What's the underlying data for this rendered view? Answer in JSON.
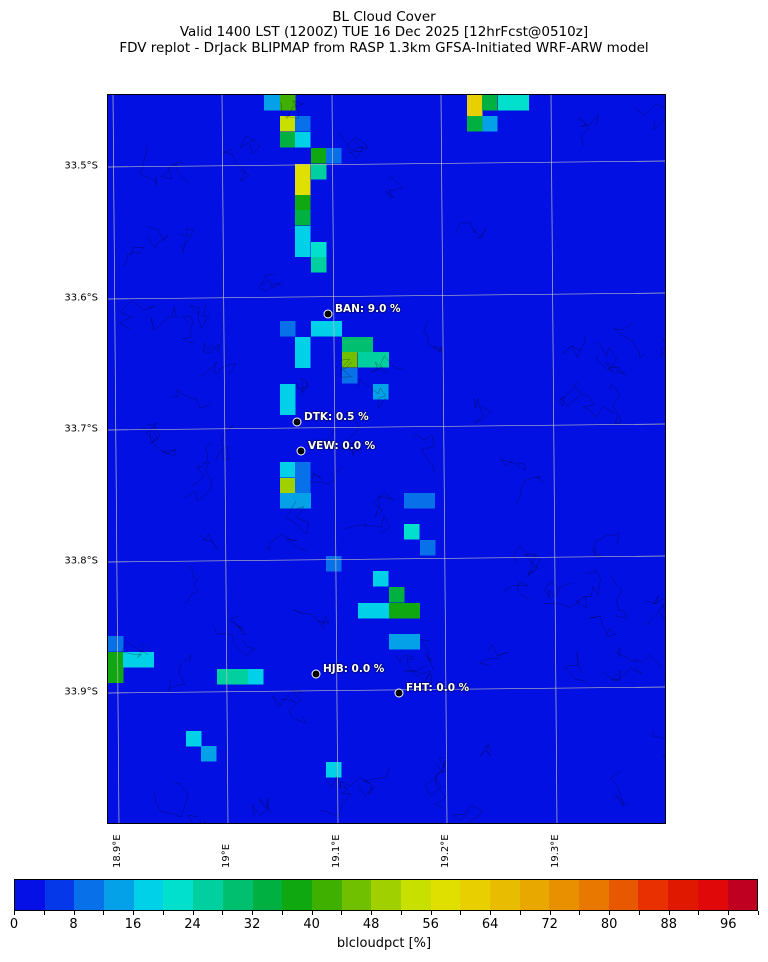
{
  "title": {
    "line1": "BL Cloud Cover",
    "line2": "Valid 1400 LST (1200Z) TUE 16 Dec 2025 [12hrFcst@0510z]",
    "line3": "FDV replot - DrJack BLIPMAP from RASP 1.3km GFSA-Initiated WRF-ARW model"
  },
  "map": {
    "background": "#0310e4",
    "lat_labels": [
      "33.5°S",
      "33.6°S",
      "33.7°S",
      "33.8°S",
      "33.9°S"
    ],
    "lon_labels": [
      "18.9°E",
      "19°E",
      "19.1°E",
      "19.2°E",
      "19.3°E"
    ],
    "stations": [
      {
        "label": "BAN: 9.0 %"
      },
      {
        "label": "DTK: 0.5 %"
      },
      {
        "label": "VEW: 0.0 %"
      },
      {
        "label": "HJB: 0.0 %"
      },
      {
        "label": "FHT: 0.0 %"
      }
    ]
  },
  "colorbar": {
    "label": "blcloudpct [%]",
    "ticks": [
      "0",
      "8",
      "16",
      "24",
      "32",
      "40",
      "48",
      "56",
      "64",
      "72",
      "80",
      "88",
      "96"
    ],
    "colors": [
      "#0410e6",
      "#0438e8",
      "#0870e8",
      "#04a0e8",
      "#00d0e8",
      "#00e0cc",
      "#00d0a0",
      "#00c070",
      "#00b040",
      "#10a810",
      "#40b000",
      "#70c000",
      "#a0d000",
      "#c8e000",
      "#e0e000",
      "#e8d000",
      "#e8bc00",
      "#e8a800",
      "#e89000",
      "#e87800",
      "#e85800",
      "#e83000",
      "#e01800",
      "#e00808",
      "#c00020"
    ]
  }
}
